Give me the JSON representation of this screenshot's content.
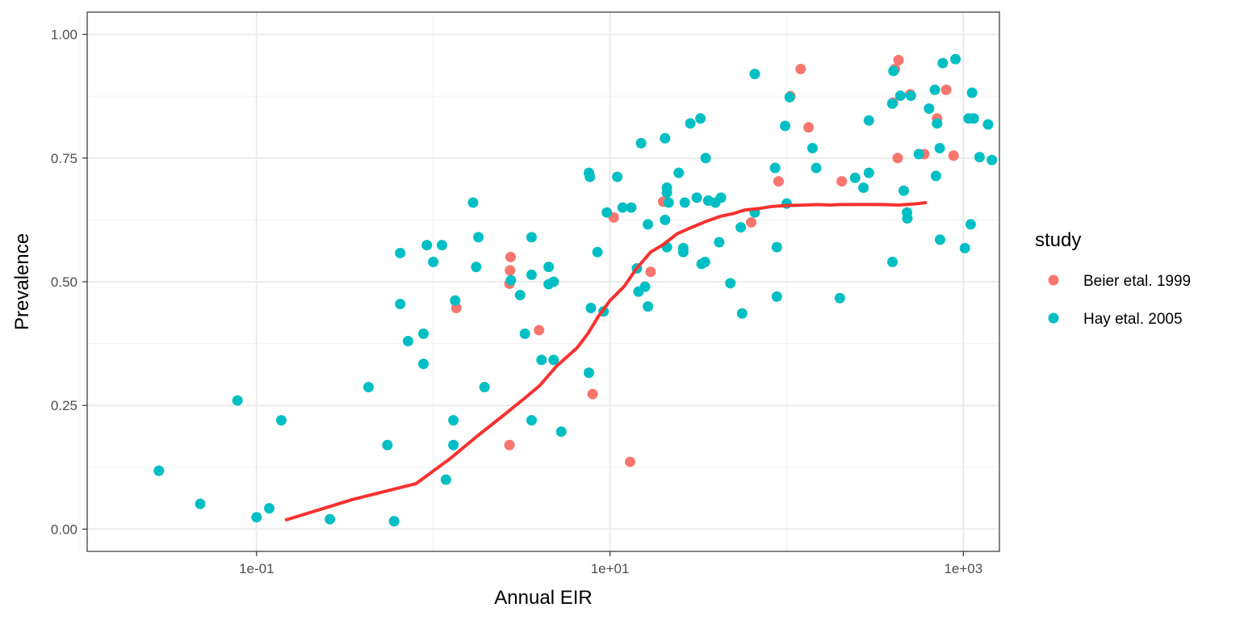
{
  "chart_data": {
    "type": "scatter",
    "title": "",
    "xlabel": "Annual EIR",
    "ylabel": "Prevalence",
    "x_scale": "log10",
    "xlim": [
      0.011,
      1600
    ],
    "ylim": [
      -0.045,
      1.045
    ],
    "x_ticks": [
      {
        "value": 0.1,
        "label": "1e-01"
      },
      {
        "value": 10,
        "label": "1e+01"
      },
      {
        "value": 1000,
        "label": "1e+03"
      }
    ],
    "y_ticks": [
      {
        "value": 0.0,
        "label": "0.00"
      },
      {
        "value": 0.25,
        "label": "0.25"
      },
      {
        "value": 0.5,
        "label": "0.50"
      },
      {
        "value": 0.75,
        "label": "0.75"
      },
      {
        "value": 1.0,
        "label": "1.00"
      }
    ],
    "grid": true,
    "legend": {
      "title": "study",
      "position": "right"
    },
    "series": [
      {
        "name": "Beier etal. 1999",
        "color": "#F8766D",
        "points": [
          [
            1.35,
            0.447
          ],
          [
            2.74,
            0.55
          ],
          [
            2.72,
            0.523
          ],
          [
            2.7,
            0.496
          ],
          [
            2.7,
            0.17
          ],
          [
            3.97,
            0.402
          ],
          [
            7.98,
            0.273
          ],
          [
            10.5,
            0.63
          ],
          [
            17.0,
            0.52
          ],
          [
            20.0,
            0.662
          ],
          [
            13.0,
            0.136
          ],
          [
            120,
            0.93
          ],
          [
            105,
            0.875
          ],
          [
            90,
            0.703
          ],
          [
            133,
            0.812
          ],
          [
            205,
            0.703
          ],
          [
            430,
            0.948
          ],
          [
            410,
            0.93
          ],
          [
            400,
            0.862
          ],
          [
            425,
            0.75
          ],
          [
            500,
            0.879
          ],
          [
            600,
            0.758
          ],
          [
            710,
            0.83
          ],
          [
            800,
            0.888
          ],
          [
            880,
            0.755
          ],
          [
            63,
            0.62
          ]
        ]
      },
      {
        "name": "Hay etal. 2005",
        "color": "#00BFC4",
        "points": [
          [
            0.028,
            0.118
          ],
          [
            0.048,
            0.051
          ],
          [
            0.078,
            0.26
          ],
          [
            0.1,
            0.024
          ],
          [
            0.118,
            0.042
          ],
          [
            0.138,
            0.22
          ],
          [
            0.26,
            0.02
          ],
          [
            0.43,
            0.287
          ],
          [
            0.55,
            0.17
          ],
          [
            0.6,
            0.016
          ],
          [
            0.65,
            0.558
          ],
          [
            0.65,
            0.455
          ],
          [
            0.72,
            0.38
          ],
          [
            0.92,
            0.574
          ],
          [
            0.88,
            0.395
          ],
          [
            0.88,
            0.334
          ],
          [
            1.0,
            0.54
          ],
          [
            1.12,
            0.574
          ],
          [
            1.18,
            0.1
          ],
          [
            1.3,
            0.22
          ],
          [
            1.3,
            0.17
          ],
          [
            1.33,
            0.462
          ],
          [
            1.68,
            0.66
          ],
          [
            1.8,
            0.59
          ],
          [
            1.75,
            0.53
          ],
          [
            1.95,
            0.287
          ],
          [
            2.75,
            0.503
          ],
          [
            3.1,
            0.473
          ],
          [
            3.3,
            0.395
          ],
          [
            3.6,
            0.59
          ],
          [
            3.6,
            0.514
          ],
          [
            3.6,
            0.22
          ],
          [
            4.1,
            0.342
          ],
          [
            4.5,
            0.53
          ],
          [
            4.5,
            0.495
          ],
          [
            4.8,
            0.5
          ],
          [
            4.8,
            0.342
          ],
          [
            5.3,
            0.197
          ],
          [
            7.6,
            0.72
          ],
          [
            7.7,
            0.712
          ],
          [
            7.8,
            0.447
          ],
          [
            7.6,
            0.316
          ],
          [
            8.5,
            0.56
          ],
          [
            9.2,
            0.44
          ],
          [
            9.6,
            0.64
          ],
          [
            11.0,
            0.712
          ],
          [
            11.8,
            0.65
          ],
          [
            13.2,
            0.65
          ],
          [
            14.2,
            0.527
          ],
          [
            14.5,
            0.48
          ],
          [
            15.0,
            0.78
          ],
          [
            15.8,
            0.49
          ],
          [
            16.4,
            0.616
          ],
          [
            16.4,
            0.45
          ],
          [
            20.5,
            0.79
          ],
          [
            21.0,
            0.69
          ],
          [
            21.0,
            0.68
          ],
          [
            21.5,
            0.66
          ],
          [
            20.5,
            0.625
          ],
          [
            21.0,
            0.57
          ],
          [
            24.5,
            0.72
          ],
          [
            26.5,
            0.66
          ],
          [
            26.0,
            0.568
          ],
          [
            26.0,
            0.56
          ],
          [
            28.5,
            0.82
          ],
          [
            31.0,
            0.67
          ],
          [
            32.5,
            0.83
          ],
          [
            33.0,
            0.536
          ],
          [
            34.5,
            0.54
          ],
          [
            34.8,
            0.75
          ],
          [
            36.0,
            0.664
          ],
          [
            39.5,
            0.66
          ],
          [
            42.5,
            0.67
          ],
          [
            41.5,
            0.58
          ],
          [
            48.0,
            0.497
          ],
          [
            55.0,
            0.61
          ],
          [
            56.0,
            0.436
          ],
          [
            66.0,
            0.92
          ],
          [
            66.0,
            0.64
          ],
          [
            86.0,
            0.73
          ],
          [
            88.0,
            0.57
          ],
          [
            88.0,
            0.47
          ],
          [
            98.0,
            0.815
          ],
          [
            104.0,
            0.873
          ],
          [
            100.0,
            0.658
          ],
          [
            140.0,
            0.77
          ],
          [
            147.0,
            0.73
          ],
          [
            200.0,
            0.467
          ],
          [
            244.0,
            0.71
          ],
          [
            272.0,
            0.69
          ],
          [
            292.0,
            0.826
          ],
          [
            292.0,
            0.72
          ],
          [
            402.0,
            0.926
          ],
          [
            396.0,
            0.86
          ],
          [
            397.0,
            0.54
          ],
          [
            440.0,
            0.876
          ],
          [
            460.0,
            0.684
          ],
          [
            480.0,
            0.64
          ],
          [
            482.0,
            0.628
          ],
          [
            505.0,
            0.876
          ],
          [
            560.0,
            0.758
          ],
          [
            640.0,
            0.85
          ],
          [
            765.0,
            0.942
          ],
          [
            902.0,
            0.95
          ],
          [
            690.0,
            0.888
          ],
          [
            710.0,
            0.82
          ],
          [
            700.0,
            0.714
          ],
          [
            735.0,
            0.77
          ],
          [
            738.0,
            0.585
          ],
          [
            1020.0,
            0.568
          ],
          [
            1070.0,
            0.83
          ],
          [
            1145.0,
            0.83
          ],
          [
            1120.0,
            0.882
          ],
          [
            1100.0,
            0.616
          ],
          [
            1235.0,
            0.752
          ],
          [
            1380.0,
            0.818
          ],
          [
            1450.0,
            0.746
          ]
        ]
      }
    ],
    "fit_line": {
      "color": "#F8312F",
      "points": [
        [
          0.145,
          0.018
        ],
        [
          0.35,
          0.06
        ],
        [
          0.8,
          0.092
        ],
        [
          1.25,
          0.143
        ],
        [
          1.8,
          0.19
        ],
        [
          2.4,
          0.225
        ],
        [
          3.3,
          0.265
        ],
        [
          4.0,
          0.29
        ],
        [
          5.0,
          0.33
        ],
        [
          6.5,
          0.366
        ],
        [
          7.5,
          0.395
        ],
        [
          8.6,
          0.43
        ],
        [
          10.0,
          0.462
        ],
        [
          12.0,
          0.49
        ],
        [
          14.0,
          0.525
        ],
        [
          17.0,
          0.56
        ],
        [
          20.0,
          0.575
        ],
        [
          24.0,
          0.597
        ],
        [
          29.0,
          0.61
        ],
        [
          35.0,
          0.622
        ],
        [
          42.0,
          0.632
        ],
        [
          50.0,
          0.638
        ],
        [
          58.0,
          0.645
        ],
        [
          70.0,
          0.648
        ],
        [
          82.0,
          0.652
        ],
        [
          100.0,
          0.654
        ],
        [
          125.0,
          0.655
        ],
        [
          150.0,
          0.656
        ],
        [
          175.0,
          0.655
        ],
        [
          200.0,
          0.656
        ],
        [
          260.0,
          0.656
        ],
        [
          350.0,
          0.656
        ],
        [
          430.0,
          0.655
        ],
        [
          520.0,
          0.657
        ],
        [
          620.0,
          0.66
        ]
      ]
    }
  }
}
